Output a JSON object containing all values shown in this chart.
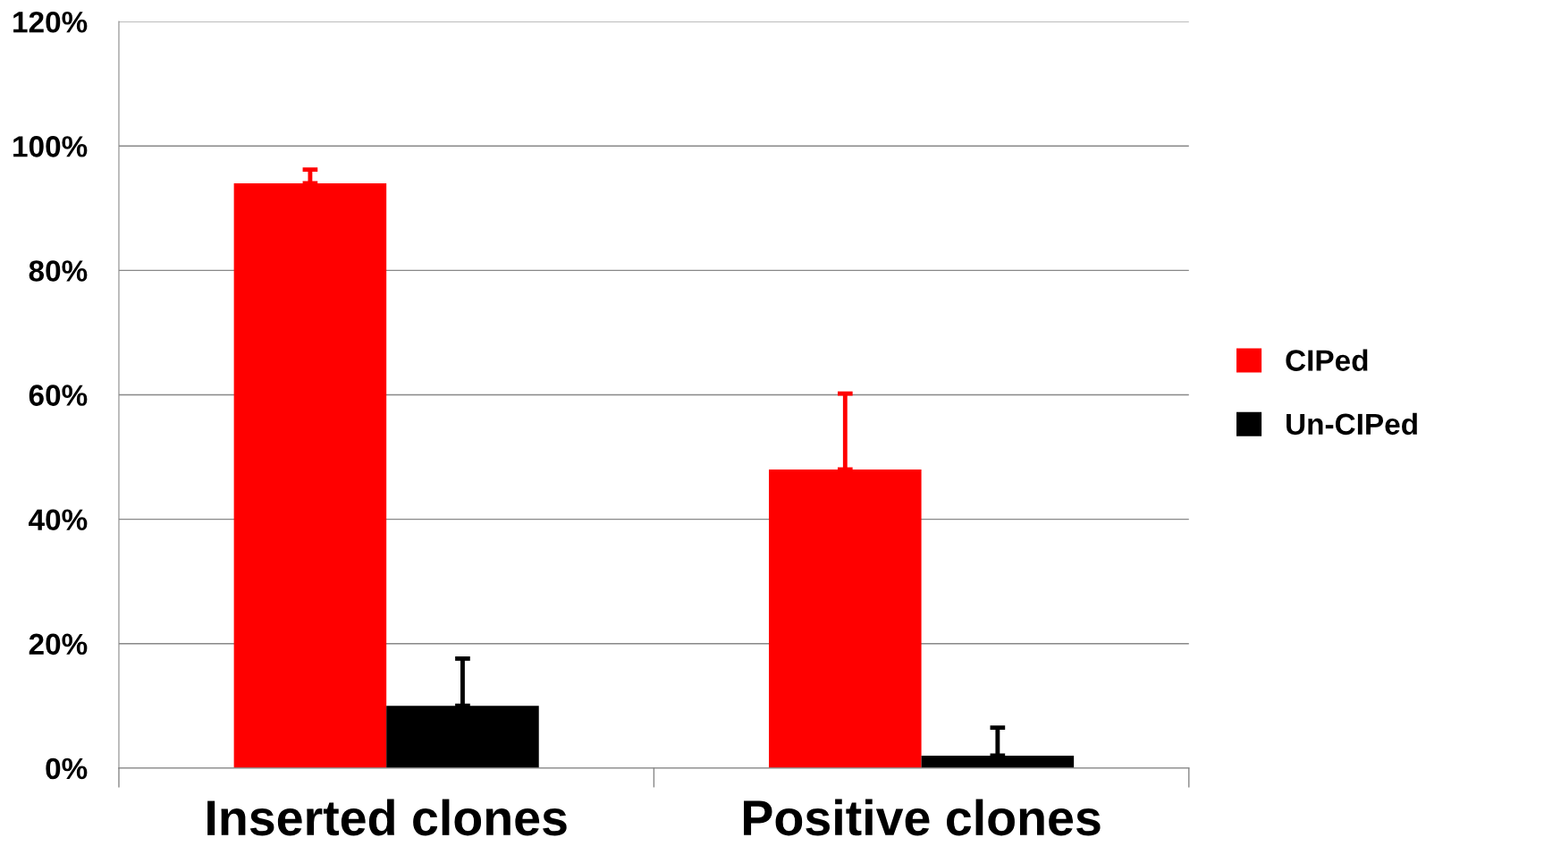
{
  "chart_data": {
    "type": "bar",
    "categories": [
      "Inserted clones",
      "Positive clones"
    ],
    "series": [
      {
        "name": "CIPed",
        "color": "#ff0000",
        "values": [
          94,
          48
        ],
        "errors": [
          [
            94,
            96.2
          ],
          [
            48,
            60.2
          ]
        ]
      },
      {
        "name": "Un-CIPed",
        "color": "#000000",
        "values": [
          10,
          2
        ],
        "errors": [
          [
            10,
            17.6
          ],
          [
            2,
            6.5
          ]
        ]
      }
    ],
    "ylim": [
      0,
      120
    ],
    "yticks": [
      {
        "value": 0,
        "label": "0%"
      },
      {
        "value": 20,
        "label": "20%"
      },
      {
        "value": 40,
        "label": "40%"
      },
      {
        "value": 60,
        "label": "60%"
      },
      {
        "value": 80,
        "label": "80%"
      },
      {
        "value": 100,
        "label": "100%"
      },
      {
        "value": 120,
        "label": "120%"
      }
    ],
    "grid": "y",
    "legend": "right"
  }
}
